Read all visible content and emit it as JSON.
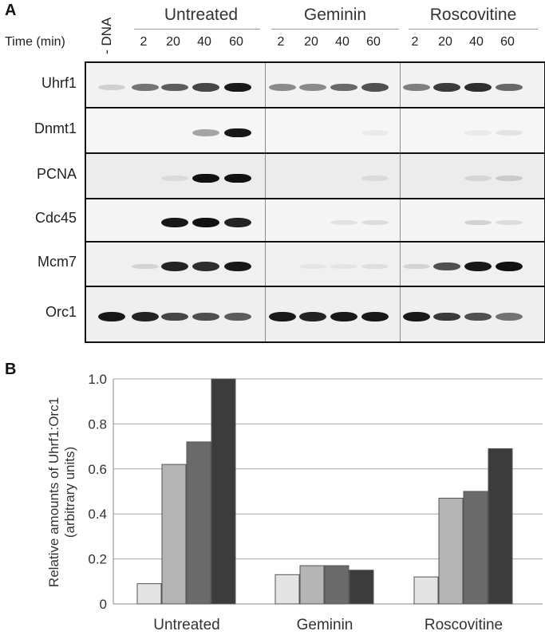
{
  "panel_a": {
    "label": "A",
    "no_dna_label": "- DNA",
    "time_label": "Time (min)",
    "groups": [
      "Untreated",
      "Geminin",
      "Roscovitine"
    ],
    "time_points": [
      "2",
      "20",
      "40",
      "60"
    ],
    "rows": [
      "Uhrf1",
      "Dnmt1",
      "PCNA",
      "Cdc45",
      "Mcm7",
      "Orc1"
    ],
    "band_intensity": [
      [
        0.15,
        0.55,
        0.65,
        0.75,
        0.95,
        0.45,
        0.45,
        0.6,
        0.7,
        0.5,
        0.8,
        0.85,
        0.6
      ],
      [
        0.0,
        0.0,
        0.0,
        0.35,
        0.95,
        0.0,
        0.0,
        0.0,
        0.05,
        0.0,
        0.0,
        0.05,
        0.08
      ],
      [
        0.0,
        0.0,
        0.08,
        0.98,
        0.98,
        0.0,
        0.0,
        0.0,
        0.08,
        0.0,
        0.0,
        0.1,
        0.15
      ],
      [
        0.0,
        0.0,
        0.95,
        0.98,
        0.9,
        0.0,
        0.0,
        0.08,
        0.1,
        0.0,
        0.0,
        0.15,
        0.1
      ],
      [
        0.0,
        0.12,
        0.9,
        0.85,
        0.95,
        0.0,
        0.05,
        0.05,
        0.08,
        0.12,
        0.7,
        0.95,
        0.98
      ],
      [
        0.95,
        0.9,
        0.75,
        0.7,
        0.65,
        0.95,
        0.9,
        0.95,
        0.95,
        0.95,
        0.8,
        0.7,
        0.55
      ]
    ]
  },
  "panel_b": {
    "label": "B",
    "ylabel": "Relative amounts of Uhrf1:Orc1\n(arbitrary units)",
    "colors": [
      "#e4e4e4",
      "#b4b4b4",
      "#6a6a6a",
      "#3c3c3c"
    ]
  },
  "chart_data": {
    "type": "bar",
    "categories": [
      "Untreated",
      "Geminin",
      "Roscovitine"
    ],
    "series": [
      {
        "values": [
          0.09,
          0.13,
          0.12
        ]
      },
      {
        "values": [
          0.62,
          0.17,
          0.47
        ]
      },
      {
        "values": [
          0.72,
          0.17,
          0.5
        ]
      },
      {
        "values": [
          1.0,
          0.15,
          0.69
        ]
      }
    ],
    "ylabel": "Relative amounts of Uhrf1:Orc1 (arbitrary units)",
    "ylim": [
      0,
      1.0
    ],
    "yticks": [
      "0",
      "0.2",
      "0.4",
      "0.6",
      "0.8",
      "1.0"
    ],
    "grid": true
  }
}
